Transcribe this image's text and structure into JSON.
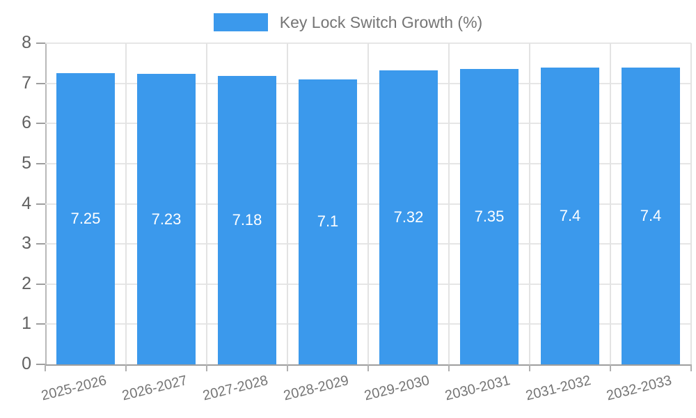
{
  "legend": {
    "label": "Key Lock Switch Growth (%)",
    "swatch_color": "#3b99ec"
  },
  "chart_data": {
    "type": "bar",
    "title": "Key Lock Switch Growth (%)",
    "categories": [
      "2025-2026",
      "2026-2027",
      "2027-2028",
      "2028-2029",
      "2029-2030",
      "2030-2031",
      "2031-2032",
      "2032-2033"
    ],
    "values": [
      7.25,
      7.23,
      7.18,
      7.1,
      7.32,
      7.35,
      7.4,
      7.4
    ],
    "value_labels": [
      "7.25",
      "7.23",
      "7.18",
      "7.1",
      "7.32",
      "7.35",
      "7.4",
      "7.4"
    ],
    "xlabel": "",
    "ylabel": "",
    "ylim": [
      0,
      8
    ],
    "y_ticks": [
      "0",
      "1",
      "2",
      "3",
      "4",
      "5",
      "6",
      "7",
      "8"
    ],
    "grid": true,
    "legend_position": "top",
    "bar_color": "#3b99ec",
    "bar_label_color": "#ffffff",
    "axis_text_color": "#757575"
  }
}
